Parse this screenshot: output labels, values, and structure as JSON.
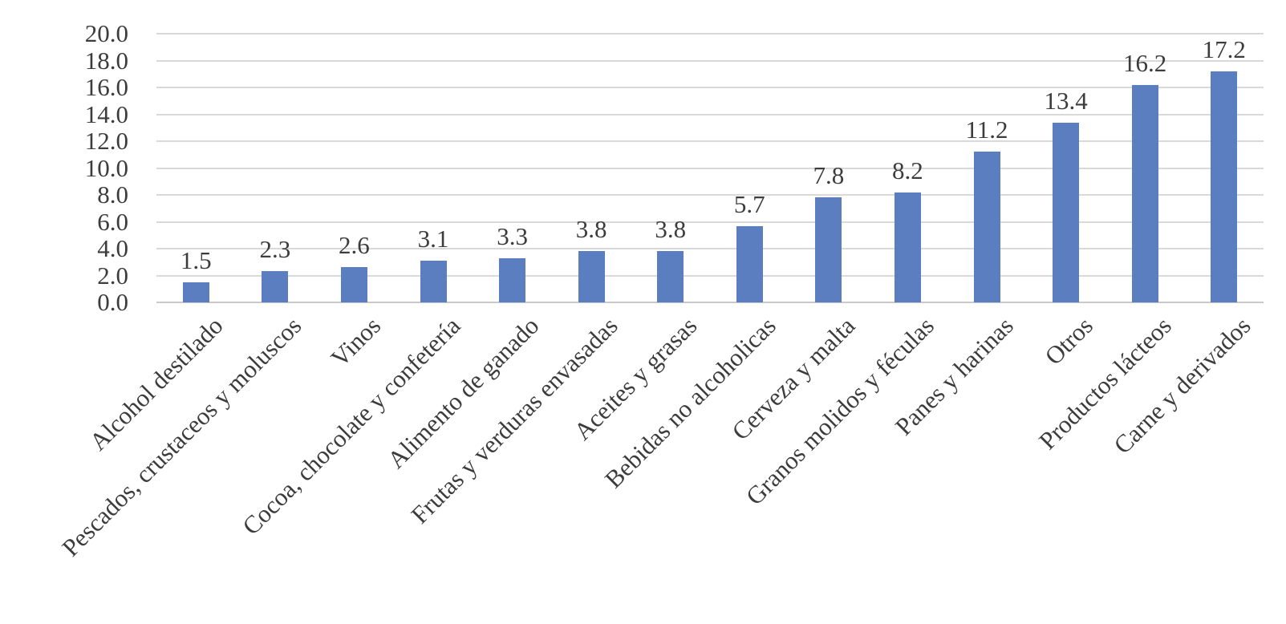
{
  "chart_data": {
    "type": "bar",
    "title": "",
    "xlabel": "",
    "ylabel": "",
    "categories": [
      "Alcohol destilado",
      "Pescados, crustaceos y moluscos",
      "Vinos",
      "Cocoa, chocolate y confetería",
      "Alimento de ganado",
      "Frutas y verduras envasadas",
      "Aceites y grasas",
      "Bebidas no alcoholicas",
      "Cerveza y malta",
      "Granos molidos y féculas",
      "Panes y harinas",
      "Otros",
      "Productos lácteos",
      "Carne y derivados"
    ],
    "values": [
      1.5,
      2.3,
      2.6,
      3.1,
      3.3,
      3.8,
      3.8,
      5.7,
      7.8,
      8.2,
      11.2,
      13.4,
      16.2,
      17.2
    ],
    "data_labels": [
      "1.5",
      "2.3",
      "2.6",
      "3.1",
      "3.3",
      "3.8",
      "3.8",
      "5.7",
      "7.8",
      "8.2",
      "11.2",
      "13.4",
      "16.2",
      "17.2"
    ],
    "ylim": [
      0,
      20
    ],
    "ytick_step": 2,
    "yticks": [
      "20.0",
      "18.0",
      "16.0",
      "14.0",
      "12.0",
      "10.0",
      "8.0",
      "6.0",
      "4.0",
      "2.0",
      "0.0"
    ],
    "grid": true,
    "x_label_rotation_deg": 45,
    "colors": {
      "bar": "#5B7EC1",
      "gridline": "#D9D9D9",
      "baseline": "#C9C9C9",
      "text": "#3C3C3C",
      "background": "#FFFFFF"
    }
  }
}
